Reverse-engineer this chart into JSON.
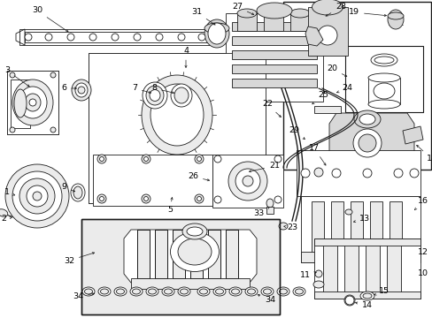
{
  "bg_color": "#ffffff",
  "line_color": "#1a1a1a",
  "label_color": "#000000",
  "fig_width": 4.89,
  "fig_height": 3.6,
  "dpi": 100,
  "gray_fill": "#d8d8d8",
  "light_gray": "#ebebeb"
}
